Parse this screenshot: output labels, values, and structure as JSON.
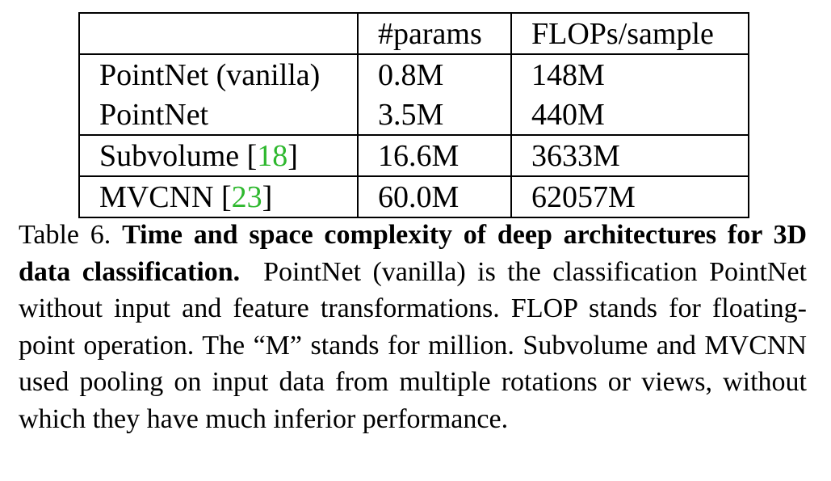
{
  "table": {
    "headers": [
      "",
      "#params",
      "FLOPs/sample"
    ],
    "groups": [
      [
        {
          "name": "PointNet (vanilla)",
          "ref": null,
          "params": "0.8M",
          "flops": "148M"
        },
        {
          "name": "PointNet",
          "ref": null,
          "params": "3.5M",
          "flops": "440M"
        }
      ],
      [
        {
          "name": "Subvolume ",
          "ref": "18",
          "params": "16.6M",
          "flops": "3633M"
        }
      ],
      [
        {
          "name": "MVCNN ",
          "ref": "23",
          "params": "60.0M",
          "flops": "62057M"
        }
      ]
    ]
  },
  "caption": {
    "label": "Table 6. ",
    "bold_title": "Time and space complexity of deep architectures for 3D data classification.",
    "body": "PointNet (vanilla) is the classification PointNet without input and feature transformations. FLOP stands for floating-point operation. The “M” stands for million. Subvolume and MVCNN used pooling on input data from multiple rotations or views, without which they have much inferior performance."
  },
  "colors": {
    "reference_link": "#2eb82e",
    "text": "#000000"
  }
}
